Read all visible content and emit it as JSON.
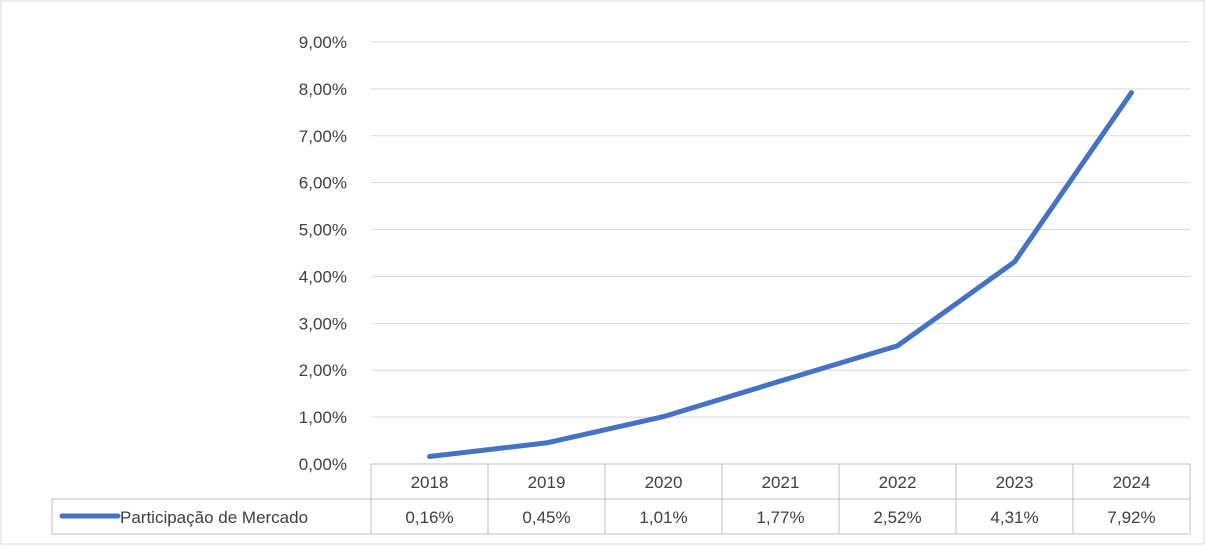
{
  "chart_data": {
    "type": "line",
    "categories": [
      "2018",
      "2019",
      "2020",
      "2021",
      "2022",
      "2023",
      "2024"
    ],
    "series": [
      {
        "name": "Participação de Mercado",
        "values": [
          0.16,
          0.45,
          1.01,
          1.77,
          2.52,
          4.31,
          7.92
        ],
        "value_labels": [
          "0,16%",
          "0,45%",
          "1,01%",
          "1,77%",
          "2,52%",
          "4,31%",
          "7,92%"
        ],
        "color": "#4472C4"
      }
    ],
    "y_ticks": [
      0,
      1,
      2,
      3,
      4,
      5,
      6,
      7,
      8,
      9
    ],
    "y_tick_labels": [
      "0,00%",
      "1,00%",
      "2,00%",
      "3,00%",
      "4,00%",
      "5,00%",
      "6,00%",
      "7,00%",
      "8,00%",
      "9,00%"
    ],
    "ylim": [
      0,
      9
    ],
    "grid": true,
    "legend": "data-table-left",
    "data_table": true
  }
}
